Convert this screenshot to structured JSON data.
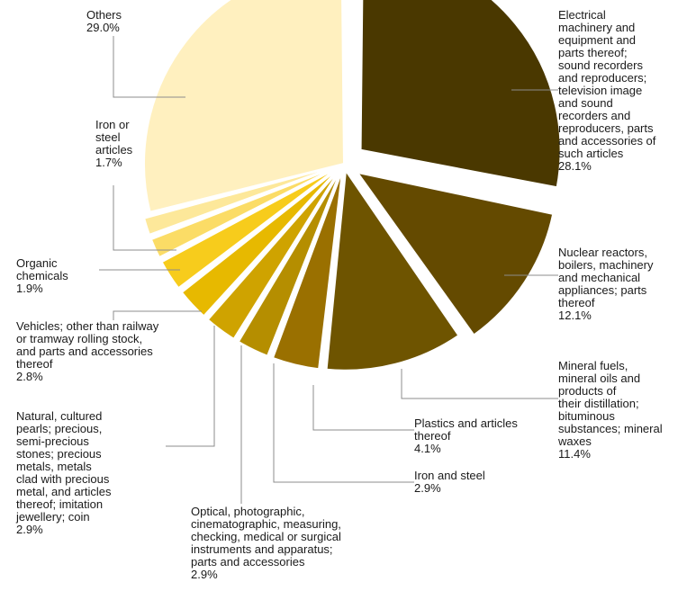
{
  "chart_data": {
    "type": "pie",
    "slices": [
      {
        "label": "Electrical machinery and equipment and parts thereof; sound recorders and reproducers; television image and sound recorders and reproducers, parts and accessories of such articles",
        "value": 28.1,
        "value_label": "28.1%",
        "color": "#4a3800"
      },
      {
        "label": "Nuclear reactors, boilers, machinery and mechanical appliances; parts thereof",
        "value": 12.1,
        "value_label": "12.1%",
        "color": "#644a00"
      },
      {
        "label": "Mineral fuels, mineral oils and products of their distillation; bituminous substances; mineral waxes",
        "value": 11.4,
        "value_label": "11.4%",
        "color": "#6e5400"
      },
      {
        "label": "Plastics and articles thereof",
        "value": 4.1,
        "value_label": "4.1%",
        "color": "#9a7000"
      },
      {
        "label": "Iron and steel",
        "value": 2.9,
        "value_label": "2.9%",
        "color": "#b58e00"
      },
      {
        "label": "Optical, photographic, cinematographic, measuring, checking, medical or surgical instruments and apparatus; parts and accessories",
        "value": 2.9,
        "value_label": "2.9%",
        "color": "#cfa300"
      },
      {
        "label": "Natural, cultured pearls; precious, semi-precious stones; precious metals, metals clad with precious metal, and articles thereof; imitation jewellery; coin",
        "value": 2.9,
        "value_label": "2.9%",
        "color": "#e7b900"
      },
      {
        "label": "Vehicles; other than railway or tramway rolling stock, and parts and accessories thereof",
        "value": 2.8,
        "value_label": "2.8%",
        "color": "#f7cc1c"
      },
      {
        "label": "Organic chemicals",
        "value": 1.9,
        "value_label": "1.9%",
        "color": "#fbdc66"
      },
      {
        "label": "Iron or steel articles",
        "value": 1.7,
        "value_label": "1.7%",
        "color": "#fde89a"
      },
      {
        "label": "Others",
        "value": 29.0,
        "value_label": "29.0%",
        "color": "#fff0bf"
      }
    ],
    "label_texts": [
      "Electrical\nmachinery and\nequipment and\nparts thereof;\nsound recorders\nand reproducers;\ntelevision image\nand sound\nrecorders and\nreproducers, parts\nand accessories of\nsuch articles",
      "Nuclear reactors,\nboilers, machinery\nand mechanical\nappliances; parts\nthereof",
      "Mineral fuels,\nmineral oils and\nproducts of\ntheir distillation;\nbituminous\nsubstances; mineral\nwaxes",
      "Plastics and articles\nthereof",
      "Iron and steel",
      "Optical, photographic,\ncinematographic, measuring,\nchecking, medical or surgical\ninstruments and apparatus;\nparts and accessories",
      "Natural, cultured\npearls; precious,\nsemi-precious\nstones; precious\nmetals, metals\nclad with precious\nmetal, and articles\nthereof; imitation\njewellery; coin",
      "Vehicles; other than railway\nor tramway rolling stock,\nand parts and accessories\nthereof",
      "Organic\nchemicals",
      "Iron or\nsteel\narticles",
      "Others"
    ],
    "leader_color": "#8c8c8c"
  }
}
